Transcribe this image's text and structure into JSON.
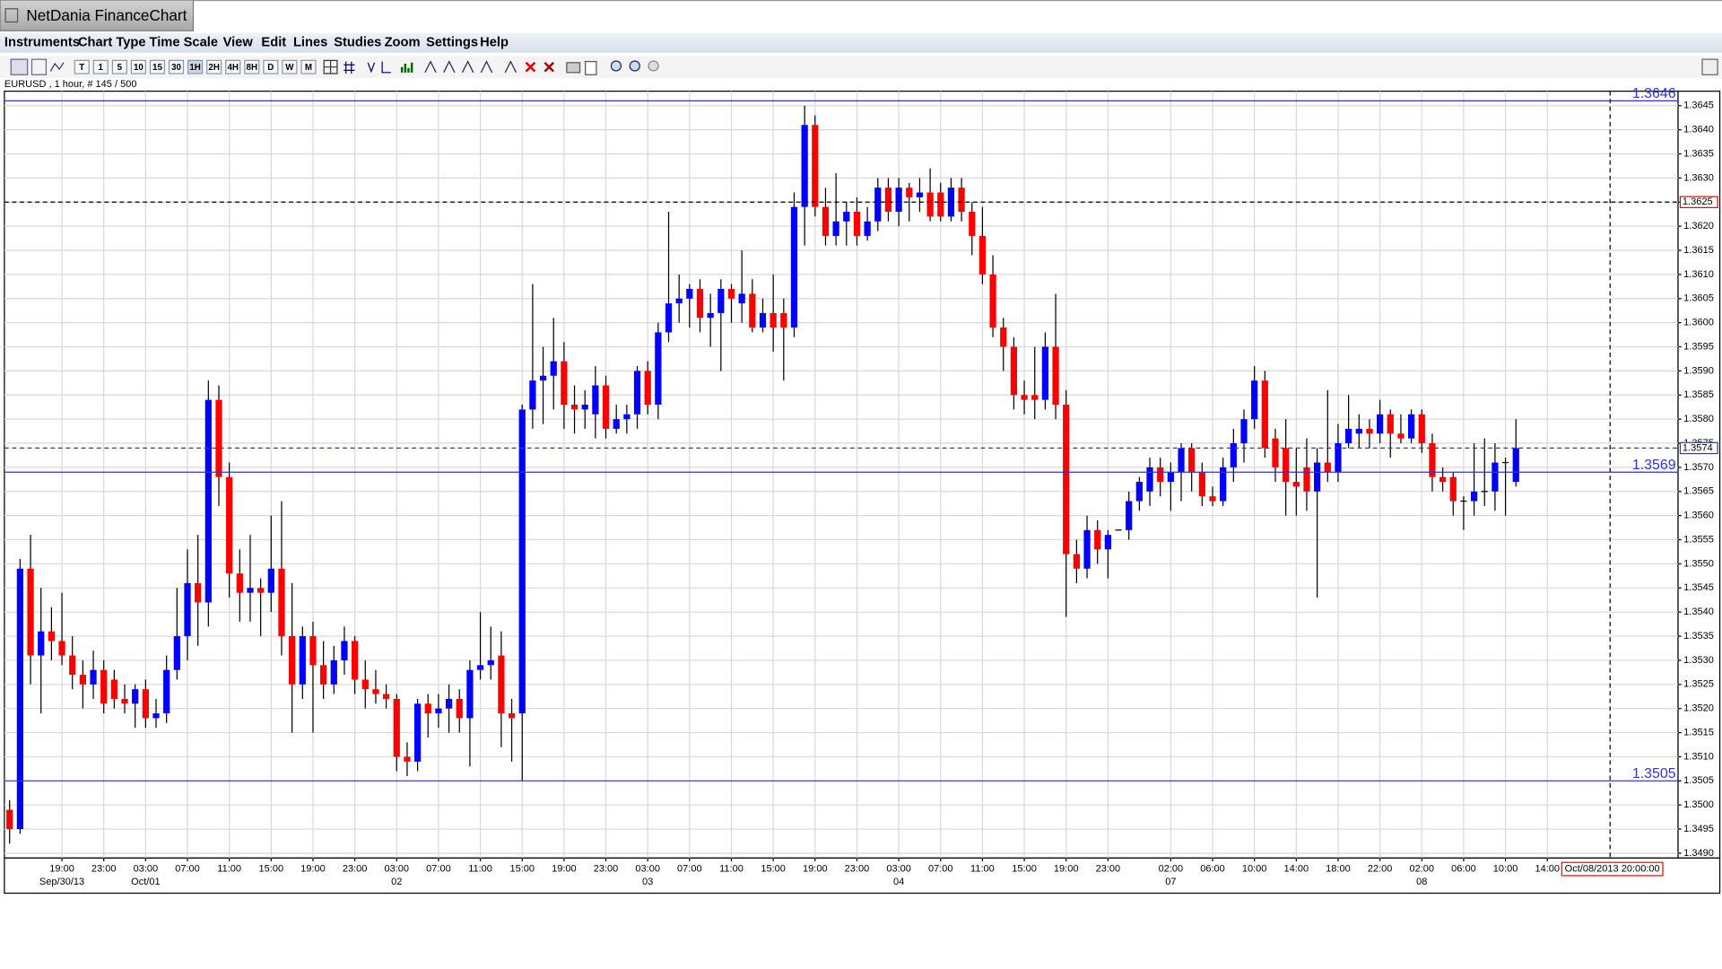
{
  "window": {
    "title": "NetDania FinanceChart",
    "menu": [
      "Instruments",
      "Chart Type",
      "Time Scale",
      "View",
      "Edit",
      "Lines",
      "Studies",
      "Zoom",
      "Settings",
      "Help"
    ],
    "timescale_buttons": [
      "T",
      "1",
      "5",
      "10",
      "15",
      "30",
      "1H",
      "2H",
      "4H",
      "8H",
      "D",
      "W",
      "M"
    ]
  },
  "chart_data": {
    "type": "candlestick",
    "title": "EURUSD , 1 hour, # 145 / 500",
    "up_color": "#0000ff",
    "down_color": "#ff0000",
    "grid": true,
    "xlim": [
      -0.5,
      159.5
    ],
    "ylim": [
      1.3489,
      1.3648
    ],
    "yticks": [
      {
        "value": 1.349,
        "label": "1.3490"
      },
      1.3495,
      {
        "value": 1.35,
        "label": "1.3500"
      },
      1.3505,
      {
        "value": 1.351,
        "label": "1.3510"
      },
      1.3515,
      {
        "value": 1.352,
        "label": "1.3520"
      },
      1.3525,
      {
        "value": 1.353,
        "label": "1.3530"
      },
      1.3535,
      {
        "value": 1.354,
        "label": "1.3540"
      },
      1.3545,
      {
        "value": 1.355,
        "label": "1.3550"
      },
      1.3555,
      {
        "value": 1.356,
        "label": "1.3560"
      },
      1.3565,
      {
        "value": 1.357,
        "label": "1.3570"
      },
      1.3575,
      {
        "value": 1.358,
        "label": "1.3580"
      },
      1.3585,
      {
        "value": 1.359,
        "label": "1.3590"
      },
      1.3595,
      {
        "value": 1.36,
        "label": "1.3600"
      },
      1.3605,
      {
        "value": 1.361,
        "label": "1.3610"
      },
      1.3615,
      {
        "value": 1.362,
        "label": "1.3620"
      },
      1.3625,
      {
        "value": 1.363,
        "label": "1.3630"
      },
      1.3635,
      {
        "value": 1.364,
        "label": "1.3640"
      },
      1.3645
    ],
    "xticks": [
      {
        "value": 5,
        "label": "19:00"
      },
      {
        "value": 9,
        "label": "23:00"
      },
      {
        "value": 13,
        "label": "03:00"
      },
      {
        "value": 17,
        "label": "07:00"
      },
      {
        "value": 21,
        "label": "11:00"
      },
      {
        "value": 25,
        "label": "15:00"
      },
      {
        "value": 29,
        "label": "19:00"
      },
      {
        "value": 33,
        "label": "23:00"
      },
      {
        "value": 37,
        "label": "03:00"
      },
      {
        "value": 41,
        "label": "07:00"
      },
      {
        "value": 45,
        "label": "11:00"
      },
      {
        "value": 49,
        "label": "15:00"
      },
      {
        "value": 53,
        "label": "19:00"
      },
      {
        "value": 57,
        "label": "23:00"
      },
      {
        "value": 61,
        "label": "03:00"
      },
      {
        "value": 65,
        "label": "07:00"
      },
      {
        "value": 69,
        "label": "11:00"
      },
      {
        "value": 73,
        "label": "15:00"
      },
      {
        "value": 77,
        "label": "19:00"
      },
      {
        "value": 81,
        "label": "23:00"
      },
      {
        "value": 85,
        "label": "03:00"
      },
      {
        "value": 89,
        "label": "07:00"
      },
      {
        "value": 93,
        "label": "11:00"
      },
      {
        "value": 97,
        "label": "15:00"
      },
      {
        "value": 101,
        "label": "19:00"
      },
      {
        "value": 105,
        "label": "23:00"
      },
      {
        "value": 111,
        "label": "02:00"
      },
      {
        "value": 115,
        "label": "06:00"
      },
      {
        "value": 119,
        "label": "10:00"
      },
      {
        "value": 123,
        "label": "14:00"
      },
      {
        "value": 127,
        "label": "18:00"
      },
      {
        "value": 131,
        "label": "22:00"
      },
      {
        "value": 135,
        "label": "02:00"
      },
      {
        "value": 139,
        "label": "06:00"
      },
      {
        "value": 143,
        "label": "10:00"
      },
      {
        "value": 147,
        "label": "14:00"
      }
    ],
    "date_ticks": [
      {
        "value": 5,
        "label": "Sep/30/13"
      },
      {
        "value": 13,
        "label": "Oct/01"
      },
      {
        "value": 37,
        "label": "02"
      },
      {
        "value": 61,
        "label": "03"
      },
      {
        "value": 85,
        "label": "04"
      },
      {
        "value": 111,
        "label": "07"
      },
      {
        "value": 135,
        "label": "08"
      }
    ],
    "lines": [
      1.3646,
      1.3569,
      1.3505
    ],
    "last_price": 1.3574,
    "crosshair": {
      "price": 1.3625,
      "index": 153,
      "time_label": "Oct/08/2013 20:00:00"
    },
    "candles": [
      [
        1.3499,
        1.3501,
        1.3492,
        1.3495
      ],
      [
        1.3495,
        1.3551,
        1.3494,
        1.3549
      ],
      [
        1.3549,
        1.3556,
        1.3525,
        1.3531
      ],
      [
        1.3531,
        1.3545,
        1.3519,
        1.3536
      ],
      [
        1.3536,
        1.3541,
        1.353,
        1.3534
      ],
      [
        1.3534,
        1.3544,
        1.3529,
        1.3531
      ],
      [
        1.3531,
        1.3535,
        1.3524,
        1.3527
      ],
      [
        1.3527,
        1.353,
        1.352,
        1.3525
      ],
      [
        1.3525,
        1.3532,
        1.3522,
        1.3528
      ],
      [
        1.3528,
        1.353,
        1.3519,
        1.3521
      ],
      [
        1.3526,
        1.3528,
        1.352,
        1.3522
      ],
      [
        1.3522,
        1.3525,
        1.3519,
        1.3521
      ],
      [
        1.3521,
        1.3525,
        1.3516,
        1.3524
      ],
      [
        1.3524,
        1.3526,
        1.3516,
        1.3518
      ],
      [
        1.3518,
        1.3522,
        1.3516,
        1.3519
      ],
      [
        1.3519,
        1.3531,
        1.3517,
        1.3528
      ],
      [
        1.3528,
        1.3545,
        1.3526,
        1.3535
      ],
      [
        1.3535,
        1.3553,
        1.353,
        1.3546
      ],
      [
        1.3546,
        1.3556,
        1.3533,
        1.3542
      ],
      [
        1.3542,
        1.3588,
        1.3537,
        1.3584
      ],
      [
        1.3584,
        1.3587,
        1.3562,
        1.3568
      ],
      [
        1.3568,
        1.3571,
        1.3543,
        1.3548
      ],
      [
        1.3548,
        1.3553,
        1.3538,
        1.3544
      ],
      [
        1.3544,
        1.3556,
        1.3538,
        1.3545
      ],
      [
        1.3545,
        1.3547,
        1.3535,
        1.3544
      ],
      [
        1.3544,
        1.356,
        1.354,
        1.3549
      ],
      [
        1.3549,
        1.3563,
        1.3531,
        1.3535
      ],
      [
        1.3535,
        1.3546,
        1.3515,
        1.3525
      ],
      [
        1.3525,
        1.3537,
        1.3522,
        1.3535
      ],
      [
        1.3535,
        1.3538,
        1.3515,
        1.3529
      ],
      [
        1.3529,
        1.3534,
        1.3522,
        1.3525
      ],
      [
        1.3525,
        1.3533,
        1.3523,
        1.353
      ],
      [
        1.353,
        1.3537,
        1.3527,
        1.3534
      ],
      [
        1.3534,
        1.3535,
        1.3523,
        1.3526
      ],
      [
        1.3526,
        1.353,
        1.352,
        1.3524
      ],
      [
        1.3524,
        1.3528,
        1.3521,
        1.3523
      ],
      [
        1.3523,
        1.3525,
        1.352,
        1.3522
      ],
      [
        1.3522,
        1.3523,
        1.3507,
        1.351
      ],
      [
        1.351,
        1.3513,
        1.3506,
        1.3509
      ],
      [
        1.3509,
        1.3522,
        1.3507,
        1.3521
      ],
      [
        1.3521,
        1.3523,
        1.3514,
        1.3519
      ],
      [
        1.3519,
        1.3523,
        1.3516,
        1.352
      ],
      [
        1.352,
        1.3525,
        1.3515,
        1.3522
      ],
      [
        1.3522,
        1.3524,
        1.3515,
        1.3518
      ],
      [
        1.3518,
        1.353,
        1.3508,
        1.3528
      ],
      [
        1.3528,
        1.354,
        1.3526,
        1.3529
      ],
      [
        1.3529,
        1.3537,
        1.3526,
        1.353
      ],
      [
        1.3531,
        1.3536,
        1.3512,
        1.3519
      ],
      [
        1.3519,
        1.3522,
        1.3509,
        1.3518
      ],
      [
        1.3519,
        1.3583,
        1.3505,
        1.3582
      ],
      [
        1.3582,
        1.3608,
        1.3578,
        1.3588
      ],
      [
        1.3588,
        1.3595,
        1.3579,
        1.3589
      ],
      [
        1.3589,
        1.3601,
        1.3582,
        1.3592
      ],
      [
        1.3592,
        1.3596,
        1.3578,
        1.3583
      ],
      [
        1.3583,
        1.3587,
        1.3577,
        1.3582
      ],
      [
        1.3582,
        1.3586,
        1.3578,
        1.3583
      ],
      [
        1.3581,
        1.3591,
        1.3576,
        1.3587
      ],
      [
        1.3587,
        1.3589,
        1.3576,
        1.3578
      ],
      [
        1.3578,
        1.3583,
        1.3577,
        1.358
      ],
      [
        1.358,
        1.3583,
        1.3577,
        1.3581
      ],
      [
        1.3581,
        1.3591,
        1.3578,
        1.359
      ],
      [
        1.359,
        1.3592,
        1.3581,
        1.3583
      ],
      [
        1.3583,
        1.36,
        1.358,
        1.3598
      ],
      [
        1.3598,
        1.3623,
        1.3596,
        1.3604
      ],
      [
        1.3604,
        1.361,
        1.36,
        1.3605
      ],
      [
        1.3605,
        1.3608,
        1.3599,
        1.3607
      ],
      [
        1.3607,
        1.3609,
        1.3598,
        1.3601
      ],
      [
        1.3601,
        1.3606,
        1.3595,
        1.3602
      ],
      [
        1.3602,
        1.3609,
        1.359,
        1.3607
      ],
      [
        1.3607,
        1.3608,
        1.36,
        1.3605
      ],
      [
        1.3604,
        1.3615,
        1.36,
        1.3606
      ],
      [
        1.3606,
        1.3609,
        1.3598,
        1.3599
      ],
      [
        1.3599,
        1.3605,
        1.3598,
        1.3602
      ],
      [
        1.3602,
        1.361,
        1.3594,
        1.3599
      ],
      [
        1.3602,
        1.3605,
        1.3588,
        1.3599
      ],
      [
        1.3599,
        1.3627,
        1.3597,
        1.3624
      ],
      [
        1.3624,
        1.3645,
        1.3616,
        1.3641
      ],
      [
        1.3641,
        1.3643,
        1.3622,
        1.3624
      ],
      [
        1.3624,
        1.3628,
        1.3616,
        1.3618
      ],
      [
        1.3618,
        1.3631,
        1.3616,
        1.3621
      ],
      [
        1.3621,
        1.3625,
        1.3616,
        1.3623
      ],
      [
        1.3623,
        1.3626,
        1.3616,
        1.3618
      ],
      [
        1.3618,
        1.3624,
        1.3617,
        1.3621
      ],
      [
        1.3621,
        1.363,
        1.3619,
        1.3628
      ],
      [
        1.3628,
        1.363,
        1.3621,
        1.3623
      ],
      [
        1.3623,
        1.363,
        1.362,
        1.3628
      ],
      [
        1.3628,
        1.3629,
        1.3621,
        1.3626
      ],
      [
        1.3626,
        1.363,
        1.3623,
        1.3627
      ],
      [
        1.3627,
        1.3632,
        1.3621,
        1.3622
      ],
      [
        1.3627,
        1.3629,
        1.3621,
        1.3622
      ],
      [
        1.3622,
        1.363,
        1.3621,
        1.3628
      ],
      [
        1.3628,
        1.363,
        1.3621,
        1.3623
      ],
      [
        1.3623,
        1.3625,
        1.3614,
        1.3618
      ],
      [
        1.3618,
        1.3624,
        1.3608,
        1.361
      ],
      [
        1.361,
        1.3614,
        1.3597,
        1.3599
      ],
      [
        1.3599,
        1.3601,
        1.359,
        1.3595
      ],
      [
        1.3595,
        1.3597,
        1.3582,
        1.3585
      ],
      [
        1.3585,
        1.3588,
        1.3581,
        1.3584
      ],
      [
        1.3585,
        1.3595,
        1.358,
        1.3584
      ],
      [
        1.3584,
        1.3598,
        1.3582,
        1.3595
      ],
      [
        1.3595,
        1.3606,
        1.358,
        1.3583
      ],
      [
        1.3583,
        1.3586,
        1.3539,
        1.3552
      ],
      [
        1.3552,
        1.3555,
        1.3546,
        1.3549
      ],
      [
        1.3549,
        1.356,
        1.3547,
        1.3557
      ],
      [
        1.3557,
        1.3559,
        1.355,
        1.3553
      ],
      [
        1.3553,
        1.3557,
        1.3547,
        1.3556
      ],
      [
        1.3557,
        1.3557,
        1.3557,
        1.3557
      ],
      [
        1.3557,
        1.3565,
        1.3555,
        1.3563
      ],
      [
        1.3563,
        1.3568,
        1.3561,
        1.3567
      ],
      [
        1.3565,
        1.3572,
        1.3562,
        1.357
      ],
      [
        1.357,
        1.3572,
        1.3564,
        1.3567
      ],
      [
        1.3567,
        1.3571,
        1.3561,
        1.3569
      ],
      [
        1.3569,
        1.3575,
        1.3563,
        1.3574
      ],
      [
        1.3574,
        1.3575,
        1.3565,
        1.3569
      ],
      [
        1.3569,
        1.3571,
        1.3562,
        1.3564
      ],
      [
        1.3564,
        1.3566,
        1.3562,
        1.3563
      ],
      [
        1.3563,
        1.3572,
        1.3562,
        1.357
      ],
      [
        1.357,
        1.3578,
        1.3567,
        1.3575
      ],
      [
        1.3575,
        1.3582,
        1.3571,
        1.358
      ],
      [
        1.358,
        1.3591,
        1.3578,
        1.3588
      ],
      [
        1.3588,
        1.359,
        1.3572,
        1.3574
      ],
      [
        1.3576,
        1.3578,
        1.3567,
        1.357
      ],
      [
        1.3574,
        1.358,
        1.356,
        1.3567
      ],
      [
        1.3567,
        1.3574,
        1.356,
        1.3566
      ],
      [
        1.357,
        1.3576,
        1.3561,
        1.3565
      ],
      [
        1.3565,
        1.3574,
        1.3543,
        1.3571
      ],
      [
        1.3571,
        1.3586,
        1.3567,
        1.3569
      ],
      [
        1.3569,
        1.3579,
        1.3567,
        1.3575
      ],
      [
        1.3575,
        1.3585,
        1.3574,
        1.3578
      ],
      [
        1.3577,
        1.3581,
        1.3574,
        1.3578
      ],
      [
        1.3578,
        1.358,
        1.3574,
        1.3577
      ],
      [
        1.3577,
        1.3584,
        1.3575,
        1.3581
      ],
      [
        1.3581,
        1.3582,
        1.3572,
        1.3577
      ],
      [
        1.3577,
        1.3581,
        1.3575,
        1.3576
      ],
      [
        1.3576,
        1.3582,
        1.3575,
        1.3581
      ],
      [
        1.3581,
        1.3582,
        1.3573,
        1.3575
      ],
      [
        1.3575,
        1.3577,
        1.3565,
        1.3568
      ],
      [
        1.3568,
        1.357,
        1.3565,
        1.3567
      ],
      [
        1.3568,
        1.3569,
        1.356,
        1.3563
      ],
      [
        1.3563,
        1.3564,
        1.3557,
        1.3563
      ],
      [
        1.3563,
        1.3575,
        1.356,
        1.3565
      ],
      [
        1.3565,
        1.3576,
        1.3562,
        1.3565
      ],
      [
        1.3565,
        1.3575,
        1.3561,
        1.3571
      ],
      [
        1.3571,
        1.3572,
        1.356,
        1.3571
      ],
      [
        1.3567,
        1.358,
        1.3566,
        1.3574
      ]
    ]
  }
}
